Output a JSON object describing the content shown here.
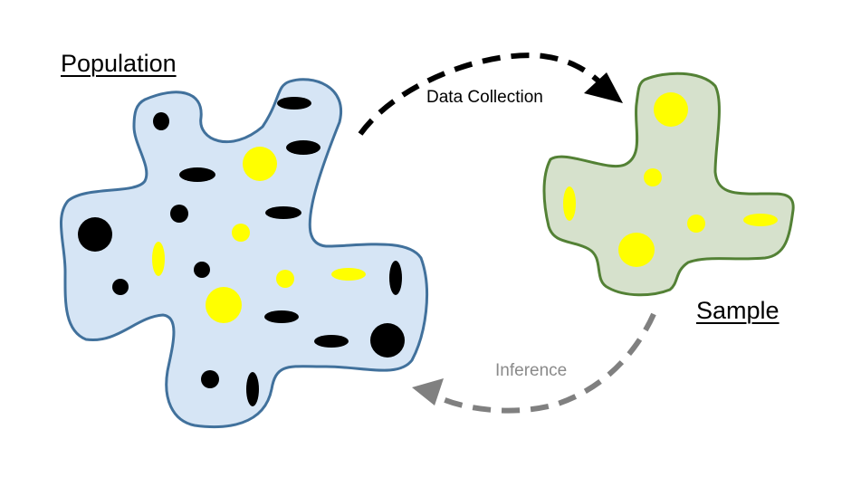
{
  "labels": {
    "population": "Population",
    "sample": "Sample",
    "data_collection": "Data Collection",
    "inference": "Inference"
  },
  "colors": {
    "population_fill": "#d6e5f5",
    "population_stroke": "#41719c",
    "sample_fill": "#d6e1cc",
    "sample_stroke": "#538135",
    "yellow_dot": "#ffff00",
    "black_dot": "#000000",
    "collection_arrow": "#000000",
    "inference_arrow": "#808080",
    "inference_text": "#8a8a8a"
  }
}
